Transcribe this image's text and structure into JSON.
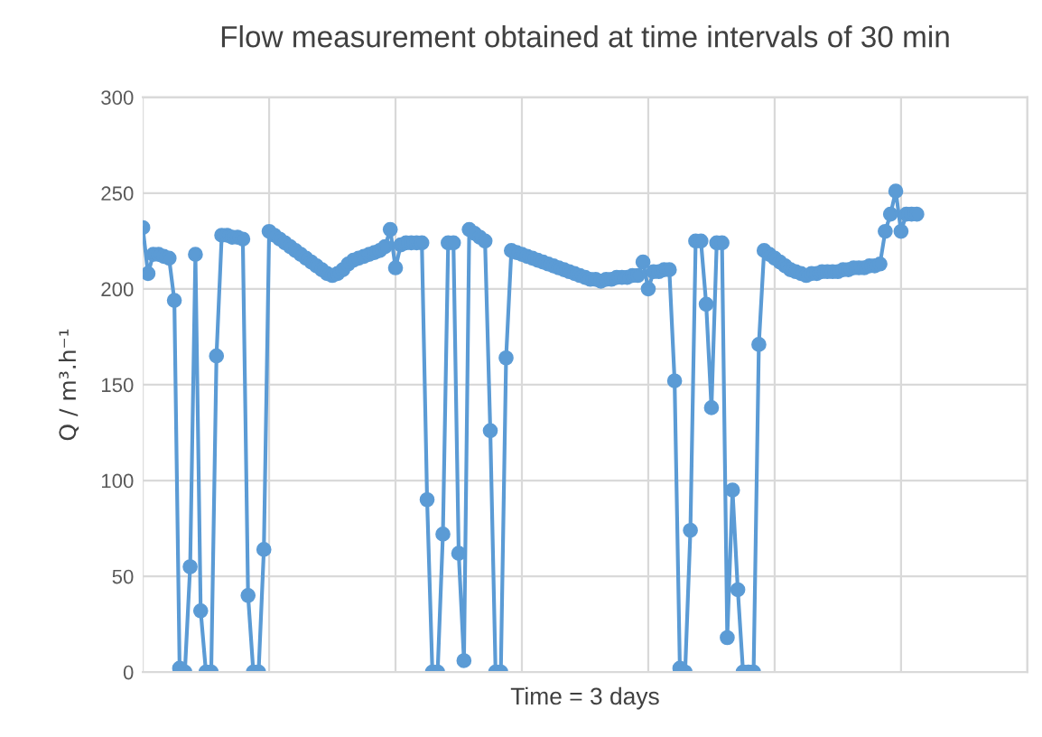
{
  "chart_data": {
    "type": "line",
    "title": "Flow measurement obtained at time intervals of 30 min",
    "xlabel": "Time = 3 days",
    "ylabel": "Q / m³.h⁻¹",
    "categories": [
      null,
      null,
      null,
      null,
      null,
      null,
      null,
      null,
      null,
      null,
      null,
      null,
      null,
      null,
      null,
      null,
      null,
      null,
      null,
      null,
      null,
      null,
      null,
      null,
      null,
      null,
      null,
      null,
      null,
      null,
      null,
      null,
      null,
      null,
      null,
      null,
      null,
      null,
      null,
      null,
      null,
      null,
      null,
      null,
      null,
      null,
      null,
      null,
      null,
      null,
      null,
      null,
      null,
      null,
      null,
      null,
      null,
      null,
      null,
      null,
      null,
      null,
      null,
      null,
      null,
      null,
      null,
      null,
      null,
      null,
      null,
      null,
      null,
      null,
      null,
      null,
      null,
      null,
      null,
      null,
      null,
      null,
      null,
      null,
      null,
      null,
      null,
      null,
      null,
      null,
      null,
      null,
      null,
      null,
      null,
      null,
      null,
      null,
      null,
      null,
      null,
      null,
      null,
      null,
      null,
      null,
      null,
      null,
      null,
      null,
      null,
      null,
      null,
      null,
      null,
      null,
      null,
      null,
      null,
      null,
      null,
      null,
      null,
      null,
      null,
      null,
      null,
      null,
      null,
      null,
      null,
      null,
      null,
      null,
      null,
      null,
      null,
      null,
      null,
      null,
      null,
      null,
      null,
      null,
      null,
      null,
      null,
      null,
      null,
      null,
      null,
      null,
      null,
      null,
      null,
      null,
      null,
      null,
      null,
      null,
      null,
      null,
      null,
      null,
      null,
      null,
      null,
      null
    ],
    "series": [
      {
        "color": "#5b9bd5",
        "values": [
          232,
          208,
          218,
          218,
          217,
          216,
          194,
          2,
          0,
          55,
          218,
          32,
          0,
          0,
          165,
          228,
          228,
          227,
          227,
          226,
          40,
          0,
          0,
          64,
          230,
          228,
          226,
          224,
          222,
          220,
          218,
          216,
          214,
          212,
          210,
          208,
          207,
          208,
          210,
          213,
          215,
          216,
          217,
          218,
          219,
          220,
          222,
          231,
          211,
          223,
          224,
          224,
          224,
          224,
          90,
          0,
          0,
          72,
          224,
          224,
          62,
          6,
          231,
          229,
          227,
          225,
          126,
          0,
          0,
          164,
          220,
          219,
          218,
          217,
          216,
          215,
          214,
          213,
          212,
          211,
          210,
          209,
          208,
          207,
          206,
          205,
          205,
          204,
          205,
          205,
          206,
          206,
          206,
          207,
          207,
          214,
          200,
          209,
          209,
          210,
          210,
          152,
          2,
          0,
          74,
          225,
          225,
          192,
          138,
          224,
          224,
          18,
          95,
          43,
          0,
          0,
          0,
          171,
          220,
          218,
          216,
          214,
          212,
          210,
          209,
          208,
          207,
          208,
          208,
          209,
          209,
          209,
          209,
          210,
          210,
          211,
          211,
          211,
          212,
          212,
          213,
          230,
          239,
          251,
          230,
          239,
          239,
          239,
          null,
          null,
          null,
          null,
          null,
          null,
          null,
          null,
          null,
          null,
          null,
          null,
          null,
          null,
          null,
          null,
          null,
          null,
          null,
          null
        ]
      }
    ],
    "ylim": [
      0,
      300
    ],
    "yticks": [
      0,
      50,
      100,
      150,
      200,
      250,
      300
    ],
    "grid": true,
    "marker": "circle",
    "line_style": "solid",
    "tick_labels": "y"
  }
}
